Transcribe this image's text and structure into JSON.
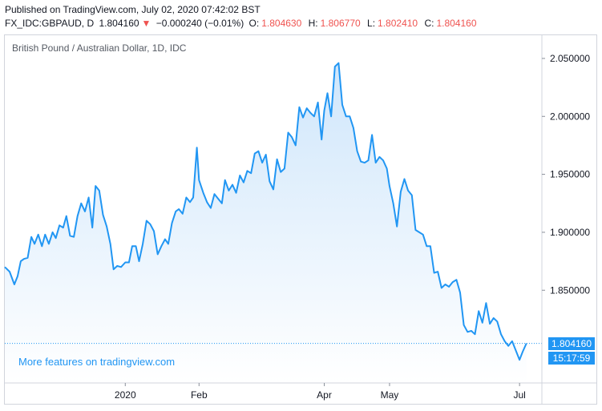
{
  "header": {
    "published": "Published on TradingView.com, July 02, 2020 07:42:02 BST",
    "symbol": "FX_IDC:GBPAUD, D",
    "last": "1.804160",
    "change_arrow": "▼",
    "change": "−0.000240 (−0.01%)",
    "open_label": "O:",
    "open": "1.804630",
    "high_label": "H:",
    "high": "1.806770",
    "low_label": "L:",
    "low": "1.802410",
    "close_label": "C:",
    "close": "1.804160"
  },
  "chart_title": "British Pound / Australian Dollar, 1D, IDC",
  "promo_text": "More features on tradingview.com",
  "price_badge": "1.804160",
  "countdown_badge": "15:17:59",
  "colors": {
    "line": "#2196f3",
    "area_top": "#cfe6fb",
    "area_bottom": "#ffffff",
    "badge": "#2196f3",
    "down": "#ef5350",
    "border": "#d1d4dc"
  },
  "chart_data": {
    "type": "area",
    "title": "British Pound / Australian Dollar, 1D, IDC",
    "ylim": [
      1.77,
      2.07
    ],
    "xlim": [
      0,
      100
    ],
    "y_ticks": [
      {
        "value": 2.05,
        "label": "2.050000"
      },
      {
        "value": 2.0,
        "label": "2.000000"
      },
      {
        "value": 1.95,
        "label": "1.950000"
      },
      {
        "value": 1.9,
        "label": "1.900000"
      },
      {
        "value": 1.85,
        "label": "1.850000"
      }
    ],
    "x_ticks": [
      {
        "value": 22.7,
        "label": "2020"
      },
      {
        "value": 36.6,
        "label": "Feb"
      },
      {
        "value": 60.2,
        "label": "Apr"
      },
      {
        "value": 72.5,
        "label": "May"
      },
      {
        "value": 97.0,
        "label": "Jul"
      }
    ],
    "last_value": 1.80416,
    "x": [
      0,
      0.9,
      1.8,
      2.4,
      3.0,
      3.6,
      4.3,
      5.0,
      5.6,
      6.3,
      7.0,
      7.6,
      8.3,
      9.0,
      9.6,
      10.3,
      11.0,
      11.6,
      12.3,
      13.0,
      13.7,
      14.4,
      15.1,
      15.8,
      16.5,
      17.1,
      17.8,
      18.5,
      19.2,
      19.9,
      20.5,
      21.2,
      21.9,
      22.7,
      23.4,
      24.0,
      24.7,
      25.3,
      26.0,
      26.7,
      27.4,
      28.1,
      28.8,
      29.5,
      30.2,
      30.8,
      31.5,
      32.2,
      32.8,
      33.5,
      34.2,
      34.9,
      35.5,
      36.2,
      36.6,
      37.4,
      38.1,
      38.8,
      39.5,
      40.2,
      40.9,
      41.5,
      42.2,
      42.9,
      43.6,
      44.3,
      45.0,
      45.7,
      46.4,
      47.1,
      47.8,
      48.5,
      49.2,
      49.9,
      50.6,
      51.3,
      52.0,
      52.7,
      53.4,
      54.1,
      54.8,
      55.5,
      56.2,
      56.9,
      57.6,
      58.3,
      59.0,
      59.7,
      60.2,
      60.8,
      61.5,
      62.2,
      62.9,
      63.6,
      64.3,
      65.0,
      65.7,
      66.4,
      67.1,
      67.8,
      68.5,
      69.2,
      69.9,
      70.6,
      71.3,
      72.0,
      72.5,
      73.2,
      73.9,
      74.6,
      75.3,
      76.0,
      76.7,
      77.4,
      78.1,
      78.8,
      79.5,
      80.2,
      80.9,
      81.6,
      82.3,
      83.0,
      83.7,
      84.4,
      85.1,
      85.8,
      86.5,
      87.2,
      87.9,
      88.6,
      89.3,
      90.0,
      90.7,
      91.4,
      92.1,
      92.8,
      93.5,
      94.2,
      94.9,
      95.6,
      96.3,
      97.0,
      97.6,
      98.3
    ],
    "y": [
      1.87,
      1.866,
      1.855,
      1.862,
      1.875,
      1.877,
      1.878,
      1.896,
      1.89,
      1.898,
      1.888,
      1.898,
      1.89,
      1.9,
      1.895,
      1.906,
      1.904,
      1.914,
      1.897,
      1.896,
      1.914,
      1.925,
      1.918,
      1.93,
      1.904,
      1.94,
      1.936,
      1.915,
      1.905,
      1.89,
      1.868,
      1.871,
      1.87,
      1.874,
      1.874,
      1.888,
      1.888,
      1.875,
      1.89,
      1.91,
      1.907,
      1.901,
      1.881,
      1.888,
      1.894,
      1.89,
      1.908,
      1.918,
      1.92,
      1.916,
      1.93,
      1.926,
      1.93,
      1.973,
      1.945,
      1.934,
      1.926,
      1.921,
      1.933,
      1.929,
      1.925,
      1.945,
      1.936,
      1.941,
      1.934,
      1.949,
      1.943,
      1.953,
      1.951,
      1.968,
      1.97,
      1.96,
      1.967,
      1.944,
      1.937,
      1.963,
      1.952,
      1.955,
      1.986,
      1.982,
      1.975,
      2.008,
      1.999,
      2.007,
      2.003,
      2.0,
      2.012,
      1.98,
      2.005,
      2.02,
      2.0,
      2.043,
      2.046,
      2.01,
      2.0,
      2.0,
      1.99,
      1.97,
      1.961,
      1.96,
      1.962,
      1.984,
      1.96,
      1.965,
      1.962,
      1.955,
      1.94,
      1.925,
      1.905,
      1.935,
      1.946,
      1.936,
      1.932,
      1.902,
      1.9,
      1.898,
      1.888,
      1.888,
      1.865,
      1.866,
      1.852,
      1.855,
      1.853,
      1.857,
      1.859,
      1.848,
      1.82,
      1.814,
      1.815,
      1.812,
      1.832,
      1.822,
      1.839,
      1.821,
      1.826,
      1.823,
      1.812,
      1.806,
      1.802,
      1.806,
      1.798,
      1.79,
      1.797,
      1.80416
    ]
  }
}
